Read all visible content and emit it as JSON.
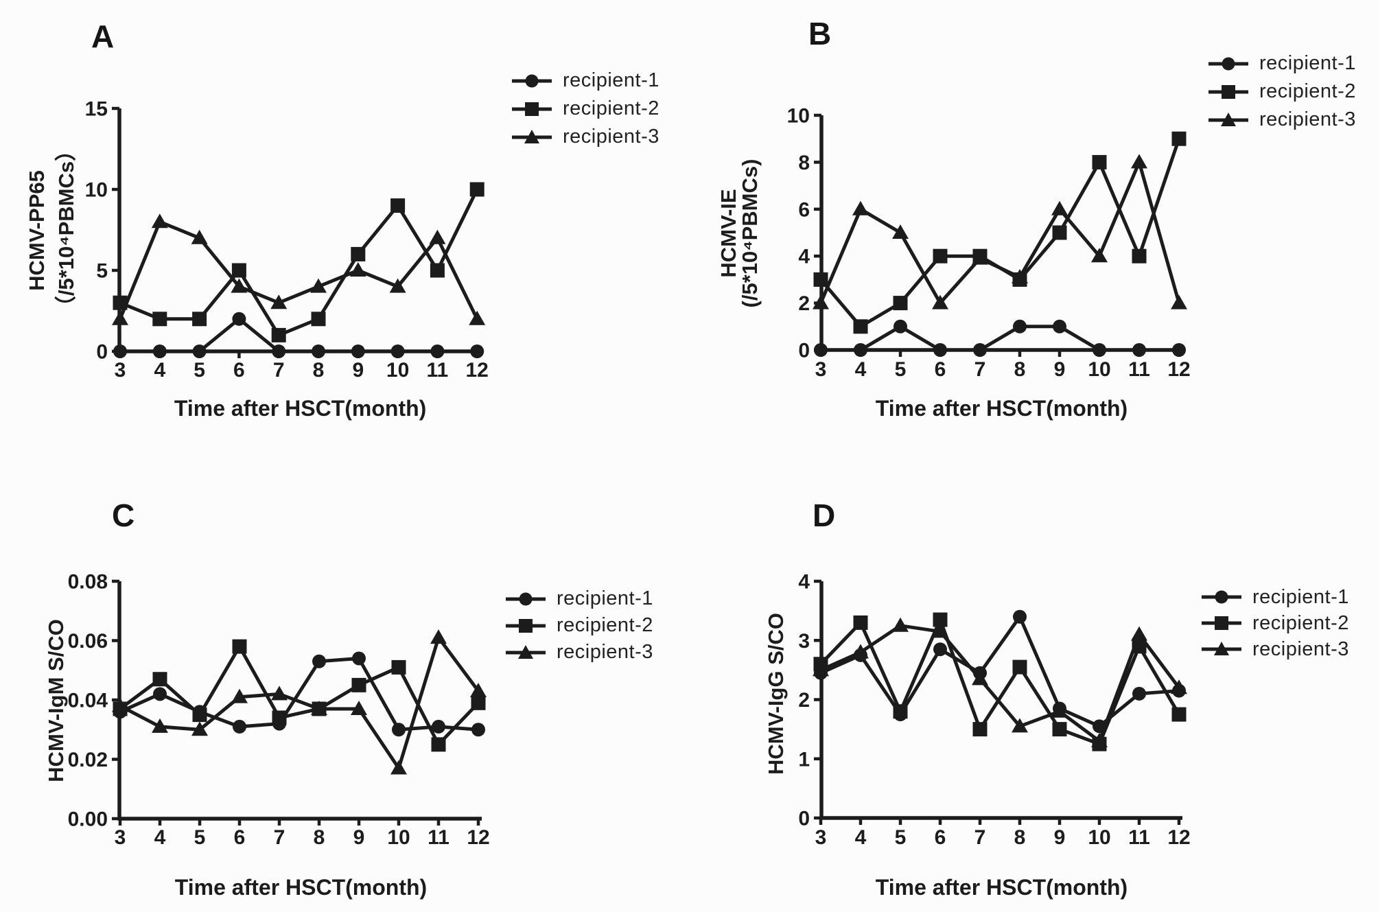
{
  "figure": {
    "background": "#fcfcfc",
    "ink": "#1c1c1c"
  },
  "chart_data": [
    {
      "panel_label": "A",
      "type": "line",
      "title": "",
      "xlabel": "Time after HSCT(month)",
      "ylabel_lines": [
        "HCMV-PP65",
        "（/5*10⁴PBMCs）"
      ],
      "x": [
        3,
        4,
        5,
        6,
        7,
        8,
        9,
        10,
        11,
        12
      ],
      "xtick_labels": [
        "3",
        "4",
        "5",
        "6",
        "7",
        "8",
        "9",
        "10",
        "11",
        "12"
      ],
      "ylim": [
        0,
        15
      ],
      "yticks": [
        0,
        5,
        10,
        15
      ],
      "ytick_labels": [
        "0",
        "5",
        "10",
        "15"
      ],
      "grid": false,
      "legend_position": "right-top",
      "series": [
        {
          "name": "recipient-1",
          "marker": "circle",
          "values": [
            0,
            0,
            0,
            2,
            0,
            0,
            0,
            0,
            0,
            0
          ]
        },
        {
          "name": "recipient-2",
          "marker": "square",
          "values": [
            3,
            2,
            2,
            5,
            1,
            2,
            6,
            9,
            5,
            10
          ]
        },
        {
          "name": "recipient-3",
          "marker": "triangle",
          "values": [
            2,
            8,
            7,
            4,
            3,
            4,
            5,
            4,
            7,
            2
          ]
        }
      ]
    },
    {
      "panel_label": "B",
      "type": "line",
      "title": "",
      "xlabel": "Time after HSCT(month)",
      "ylabel_lines": [
        "HCMV-IE",
        "(/5*10⁴PBMCs)"
      ],
      "x": [
        3,
        4,
        5,
        6,
        7,
        8,
        9,
        10,
        11,
        12
      ],
      "xtick_labels": [
        "3",
        "4",
        "5",
        "6",
        "7",
        "8",
        "9",
        "10",
        "11",
        "12"
      ],
      "ylim": [
        0,
        10
      ],
      "yticks": [
        0,
        2,
        4,
        6,
        8,
        10
      ],
      "ytick_labels": [
        "0",
        "2",
        "4",
        "6",
        "8",
        "10"
      ],
      "grid": false,
      "legend_position": "right-top",
      "series": [
        {
          "name": "recipient-1",
          "marker": "circle",
          "values": [
            0,
            0,
            1,
            0,
            0,
            1,
            1,
            0,
            0,
            0
          ]
        },
        {
          "name": "recipient-2",
          "marker": "square",
          "values": [
            3,
            1,
            2,
            4,
            4,
            3,
            5,
            8,
            4,
            9
          ]
        },
        {
          "name": "recipient-3",
          "marker": "triangle",
          "values": [
            2,
            6,
            5,
            2,
            3.9,
            3.1,
            6,
            4,
            8,
            2
          ]
        }
      ]
    },
    {
      "panel_label": "C",
      "type": "line",
      "title": "",
      "xlabel": "Time after HSCT(month)",
      "ylabel_lines": [
        "HCMV-IgM S/CO"
      ],
      "x": [
        3,
        4,
        5,
        6,
        7,
        8,
        9,
        10,
        11,
        12
      ],
      "xtick_labels": [
        "3",
        "4",
        "5",
        "6",
        "7",
        "8",
        "9",
        "10",
        "11",
        "12"
      ],
      "ylim": [
        0,
        0.08
      ],
      "yticks": [
        0,
        0.02,
        0.04,
        0.06,
        0.08
      ],
      "ytick_labels": [
        "0.00",
        "0.02",
        "0.04",
        "0.06",
        "0.08"
      ],
      "grid": false,
      "legend_position": "right-top",
      "series": [
        {
          "name": "recipient-1",
          "marker": "circle",
          "values": [
            0.036,
            0.042,
            0.036,
            0.031,
            0.032,
            0.053,
            0.054,
            0.03,
            0.031,
            0.03
          ]
        },
        {
          "name": "recipient-2",
          "marker": "square",
          "values": [
            0.037,
            0.047,
            0.035,
            0.058,
            0.034,
            0.037,
            0.045,
            0.051,
            0.025,
            0.039
          ]
        },
        {
          "name": "recipient-3",
          "marker": "triangle",
          "values": [
            0.038,
            0.031,
            0.03,
            0.041,
            0.042,
            0.037,
            0.037,
            0.017,
            0.061,
            0.043
          ]
        }
      ]
    },
    {
      "panel_label": "D",
      "type": "line",
      "title": "",
      "xlabel": "Time after HSCT(month)",
      "ylabel_lines": [
        "HCMV-IgG S/CO"
      ],
      "x": [
        3,
        4,
        5,
        6,
        7,
        8,
        9,
        10,
        11,
        12
      ],
      "xtick_labels": [
        "3",
        "4",
        "5",
        "6",
        "7",
        "8",
        "9",
        "10",
        "11",
        "12"
      ],
      "ylim": [
        0,
        4
      ],
      "yticks": [
        0,
        1,
        2,
        3,
        4
      ],
      "ytick_labels": [
        "0",
        "1",
        "2",
        "3",
        "4"
      ],
      "grid": false,
      "legend_position": "right-top",
      "series": [
        {
          "name": "recipient-1",
          "marker": "circle",
          "values": [
            2.45,
            2.75,
            1.75,
            2.85,
            2.45,
            3.4,
            1.85,
            1.55,
            2.1,
            2.15
          ]
        },
        {
          "name": "recipient-2",
          "marker": "square",
          "values": [
            2.6,
            3.3,
            1.8,
            3.35,
            1.5,
            2.55,
            1.5,
            1.25,
            2.9,
            1.75
          ]
        },
        {
          "name": "recipient-3",
          "marker": "triangle",
          "values": [
            2.5,
            2.8,
            3.25,
            3.15,
            2.35,
            1.55,
            1.8,
            1.3,
            3.1,
            2.2
          ]
        }
      ]
    }
  ]
}
